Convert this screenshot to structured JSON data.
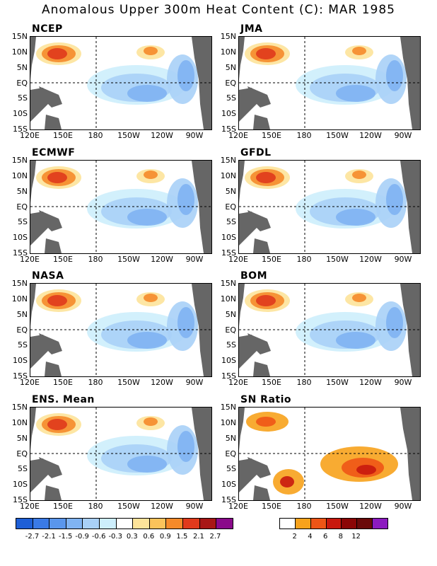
{
  "title": "Anomalous Upper 300m Heat Content (C): MAR 1985",
  "lat_labels": [
    "15N",
    "10N",
    "5N",
    "EQ",
    "5S",
    "10S",
    "15S"
  ],
  "lon_labels": [
    "120E",
    "150E",
    "180",
    "150W",
    "120W",
    "90W"
  ],
  "panels": [
    {
      "name": "NCEP"
    },
    {
      "name": "JMA"
    },
    {
      "name": "ECMWF"
    },
    {
      "name": "GFDL"
    },
    {
      "name": "NASA"
    },
    {
      "name": "BOM"
    },
    {
      "name": "ENS. Mean"
    },
    {
      "name": "SN Ratio"
    }
  ],
  "anomaly_colorbar": {
    "labels": [
      "-2.7",
      "-2.1",
      "-1.5",
      "-0.9",
      "-0.6",
      "-0.3",
      "0.3",
      "0.6",
      "0.9",
      "1.5",
      "2.1",
      "2.7"
    ],
    "colors": [
      "#1e5fd6",
      "#3a7ae6",
      "#5a96ec",
      "#80b3f2",
      "#a9d0f7",
      "#cdeefc",
      "#ffffff",
      "#fde39a",
      "#fbc35b",
      "#f58a2a",
      "#e03a1c",
      "#a81616",
      "#8a0a8a"
    ]
  },
  "snr_colorbar": {
    "labels": [
      "2",
      "4",
      "6",
      "8",
      "12"
    ],
    "colors": [
      "#ffffff",
      "#f7a21c",
      "#ee5516",
      "#c8180e",
      "#8b0606",
      "#6a0a0a",
      "#8c1bbf"
    ]
  },
  "colors": {
    "land": "#666666",
    "ocean": "#ffffff"
  }
}
